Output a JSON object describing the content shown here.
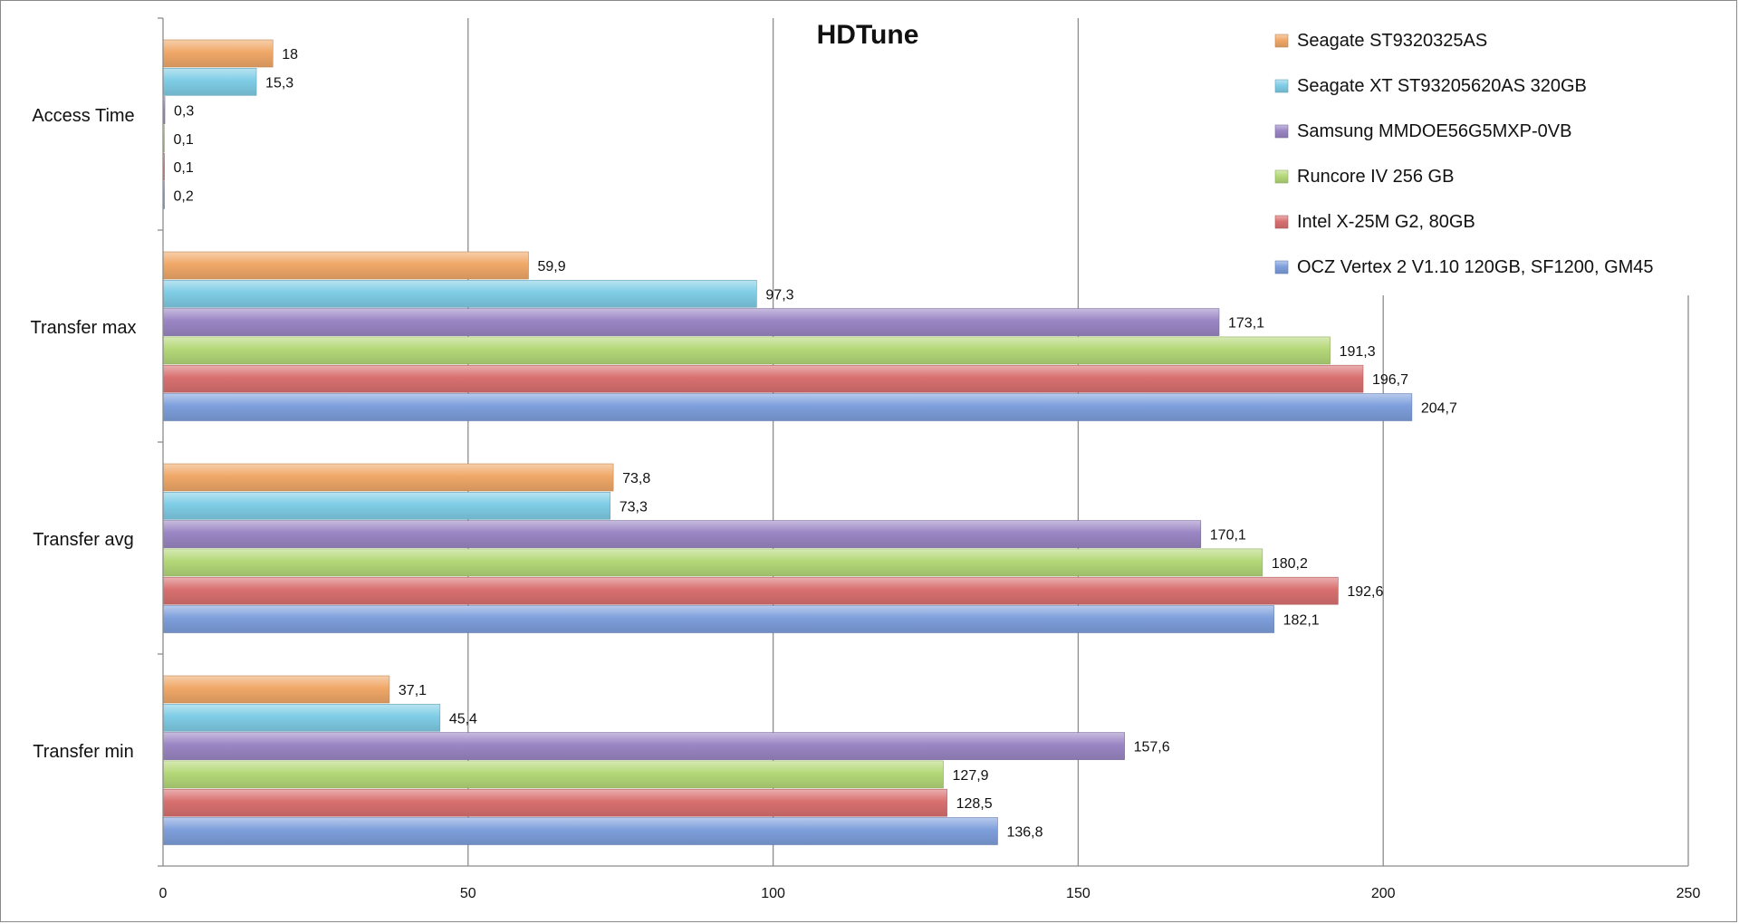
{
  "chart_data": {
    "type": "bar",
    "orientation": "horizontal",
    "title": "HDTune",
    "xlabel": "",
    "ylabel": "",
    "xlim": [
      0,
      250
    ],
    "x_ticks": [
      "0",
      "50",
      "100",
      "150",
      "200",
      "250"
    ],
    "grid": true,
    "legend_position": "top-right",
    "categories": [
      "Access Time",
      "Transfer max",
      "Transfer avg",
      "Transfer min"
    ],
    "series": [
      {
        "name": "Seagate ST9320325AS",
        "color": "#f0a868",
        "values": [
          18,
          59.9,
          73.8,
          37.1
        ],
        "labels": [
          "18",
          "59,9",
          "73,8",
          "37,1"
        ]
      },
      {
        "name": "Seagate XT ST93205620AS 320GB",
        "color": "#7fcde6",
        "values": [
          15.3,
          97.3,
          73.3,
          45.4
        ],
        "labels": [
          "15,3",
          "97,3",
          "73,3",
          "45,4"
        ]
      },
      {
        "name": "Samsung MMDOE56G5MXP-0VB",
        "color": "#9a86c4",
        "values": [
          0.3,
          173.1,
          170.1,
          157.6
        ],
        "labels": [
          "0,3",
          "173,1",
          "170,1",
          "157,6"
        ]
      },
      {
        "name": "Runcore IV 256 GB",
        "color": "#b4d878",
        "values": [
          0.1,
          191.3,
          180.2,
          127.9
        ],
        "labels": [
          "0,1",
          "191,3",
          "180,2",
          "127,9"
        ]
      },
      {
        "name": "Intel X-25M G2, 80GB",
        "color": "#d97070",
        "values": [
          0.1,
          196.7,
          192.6,
          128.5
        ],
        "labels": [
          "0,1",
          "196,7",
          "192,6",
          "128,5"
        ]
      },
      {
        "name": "OCZ Vertex 2 V1.10 120GB, SF1200, GM45",
        "color": "#7e9fdc",
        "values": [
          0.2,
          204.7,
          182.1,
          136.8
        ],
        "labels": [
          "0,2",
          "204,7",
          "182,1",
          "136,8"
        ]
      }
    ]
  }
}
